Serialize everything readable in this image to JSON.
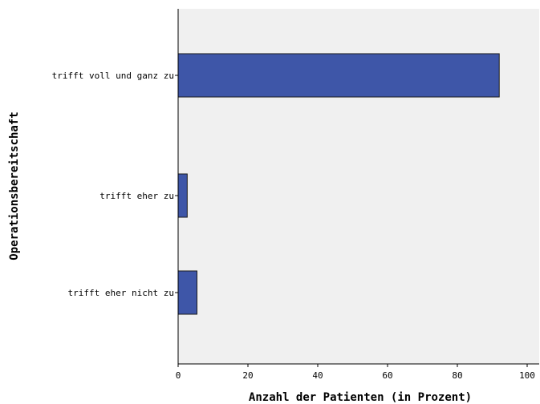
{
  "chart_data": {
    "type": "bar",
    "orientation": "horizontal",
    "categories": [
      "trifft voll und ganz zu",
      "trifft eher zu",
      "trifft eher nicht zu"
    ],
    "values": [
      92,
      2.6,
      5.4
    ],
    "xlabel": "Anzahl der Patienten (in Prozent)",
    "ylabel": "Operationsbereitschaft",
    "xlim": [
      0,
      100
    ],
    "xticks": [
      "0",
      "20",
      "40",
      "60",
      "80",
      "100"
    ],
    "grid": false,
    "legend": "none",
    "colors": {
      "bar": "#3e56a8",
      "bar_border": "#1a1a1a",
      "plot_background": "#f0f0f0"
    }
  }
}
